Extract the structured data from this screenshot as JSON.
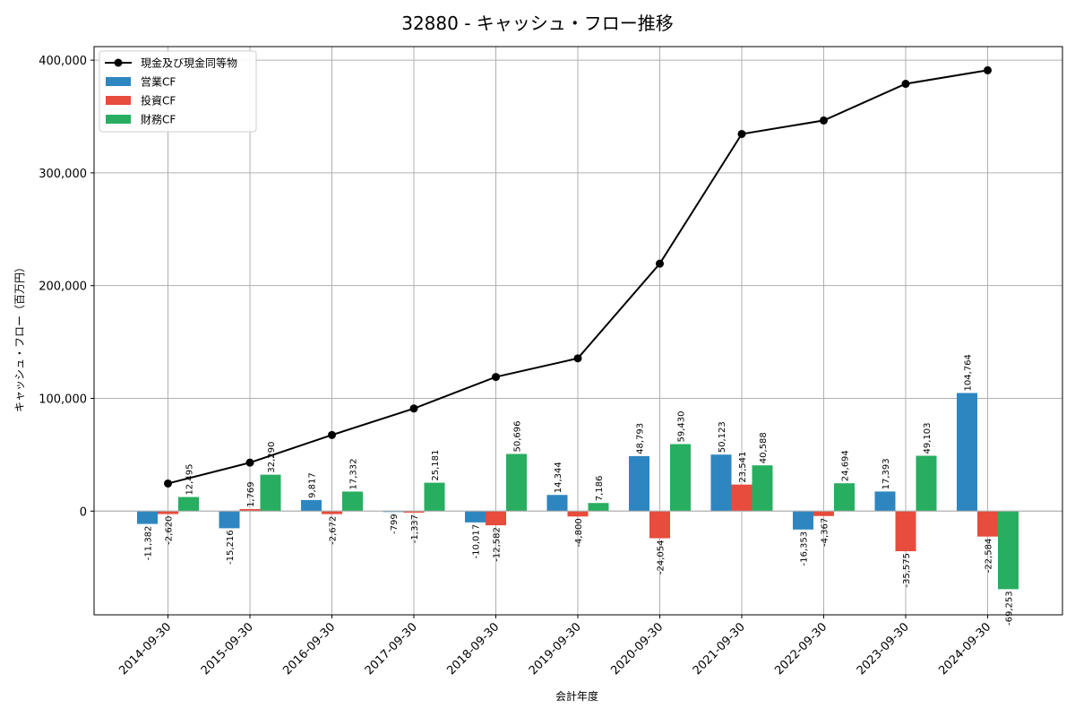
{
  "chart_data": {
    "type": "bar",
    "title": "32880 - キャッシュ・フロー推移",
    "xlabel": "会計年度",
    "ylabel": "キャッシュ・フロー（百万円）",
    "categories": [
      "2014-09-30",
      "2015-09-30",
      "2016-09-30",
      "2017-09-30",
      "2018-09-30",
      "2019-09-30",
      "2020-09-30",
      "2021-09-30",
      "2022-09-30",
      "2023-09-30",
      "2024-09-30"
    ],
    "ylim": [
      -92000,
      412000
    ],
    "yticks": [
      0,
      100000,
      200000,
      300000,
      400000
    ],
    "ytick_labels": [
      "0",
      "100,000",
      "200,000",
      "300,000",
      "400,000"
    ],
    "grid": true,
    "legend_position": "top-left",
    "series": [
      {
        "name": "営業CF",
        "kind": "bar",
        "color": "#2e86c1",
        "values": [
          -11382,
          -15216,
          9817,
          -799,
          -10017,
          14344,
          48793,
          50123,
          -16353,
          17393,
          104764
        ],
        "labels": [
          "-11,382",
          "-15,216",
          "9,817",
          "-799",
          "-10,017",
          "14,344",
          "48,793",
          "50,123",
          "-16,353",
          "17,393",
          "104,764"
        ]
      },
      {
        "name": "投資CF",
        "kind": "bar",
        "color": "#e74c3c",
        "values": [
          -2620,
          1769,
          -2672,
          -1337,
          -12582,
          -4800,
          -24054,
          23541,
          -4367,
          -35575,
          -22584
        ],
        "labels": [
          "-2,620",
          "1,769",
          "-2,672",
          "-1,337",
          "-12,582",
          "-4,800",
          "-24,054",
          "23,541",
          "-4,367",
          "-35,575",
          "-22,584"
        ]
      },
      {
        "name": "財務CF",
        "kind": "bar",
        "color": "#27ae60",
        "values": [
          12495,
          32290,
          17332,
          25181,
          50696,
          7186,
          59430,
          40588,
          24694,
          49103,
          -69253
        ],
        "labels": [
          "12,495",
          "32,290",
          "17,332",
          "25,181",
          "50,696",
          "7,186",
          "59,430",
          "40,588",
          "24,694",
          "49,103",
          "-69,253"
        ]
      },
      {
        "name": "現金及び現金同等物",
        "kind": "line",
        "color": "#000000",
        "values": [
          24500,
          43000,
          67500,
          91000,
          119000,
          135500,
          219500,
          334500,
          346500,
          379000,
          391000
        ]
      }
    ]
  }
}
